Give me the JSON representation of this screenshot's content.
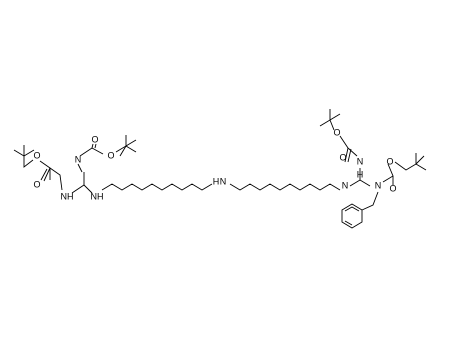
{
  "atoms": [
    "O",
    "O",
    "NH",
    "N",
    "NH",
    "O",
    "O",
    "H",
    "N",
    "N",
    "H",
    "N",
    "O",
    "O",
    "N",
    "O",
    "O"
  ]
}
